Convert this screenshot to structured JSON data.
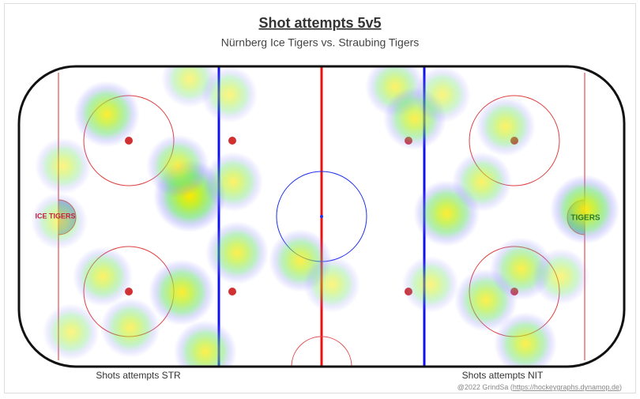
{
  "chart_data": {
    "type": "heatmap",
    "title": "Shot attempts 5v5",
    "subtitle": "Nürnberg Ice Tigers vs. Straubing Tigers",
    "left_label": "Shots attempts STR",
    "right_label": "Shots attempts NIT",
    "left_logo": "ICE TIGERS",
    "right_logo": "TIGERS",
    "credit": "@2022 GrindSa (",
    "credit_link": "https://hockeygraphs.dynamop.de",
    "credit_end": ")",
    "xlim": [
      -100,
      100
    ],
    "ylim": [
      -42.5,
      42.5
    ],
    "spots": [
      {
        "x": -71,
        "y": 29,
        "intensity": 0.8
      },
      {
        "x": -43.6,
        "y": 5.8,
        "intensity": 1.0
      },
      {
        "x": -47.5,
        "y": 14.3,
        "intensity": 0.7
      },
      {
        "x": -85.4,
        "y": 14.3,
        "intensity": 0.5
      },
      {
        "x": -86.7,
        "y": -1.3,
        "intensity": 0.5
      },
      {
        "x": -72.3,
        "y": -17,
        "intensity": 0.6
      },
      {
        "x": -46.2,
        "y": -21.5,
        "intensity": 0.8
      },
      {
        "x": -63.2,
        "y": -31.5,
        "intensity": 0.6
      },
      {
        "x": -38.4,
        "y": -38.3,
        "intensity": 0.7
      },
      {
        "x": -27.9,
        "y": -10.3,
        "intensity": 0.7
      },
      {
        "x": -7,
        "y": -12.5,
        "intensity": 0.7
      },
      {
        "x": -29.2,
        "y": 9.8,
        "intensity": 0.6
      },
      {
        "x": -30.5,
        "y": 34.5,
        "intensity": 0.5
      },
      {
        "x": -43.6,
        "y": 38.9,
        "intensity": 0.5
      },
      {
        "x": 3.4,
        "y": -19.2,
        "intensity": 0.5
      },
      {
        "x": 24.3,
        "y": 36.7,
        "intensity": 0.6
      },
      {
        "x": 30.8,
        "y": 27.7,
        "intensity": 0.7
      },
      {
        "x": 39.9,
        "y": 34.5,
        "intensity": 0.5
      },
      {
        "x": 41.3,
        "y": 0.9,
        "intensity": 0.8
      },
      {
        "x": 53,
        "y": 9.8,
        "intensity": 0.6
      },
      {
        "x": 87,
        "y": 2,
        "intensity": 0.9
      },
      {
        "x": 54.3,
        "y": -23.7,
        "intensity": 0.7
      },
      {
        "x": 66,
        "y": -14.8,
        "intensity": 0.7
      },
      {
        "x": 67.4,
        "y": -36,
        "intensity": 0.7
      },
      {
        "x": 36,
        "y": -19.2,
        "intensity": 0.5
      },
      {
        "x": -82.8,
        "y": -32.7,
        "intensity": 0.5
      },
      {
        "x": 79.1,
        "y": -17,
        "intensity": 0.5
      },
      {
        "x": 60.8,
        "y": 25.5,
        "intensity": 0.6
      }
    ]
  }
}
